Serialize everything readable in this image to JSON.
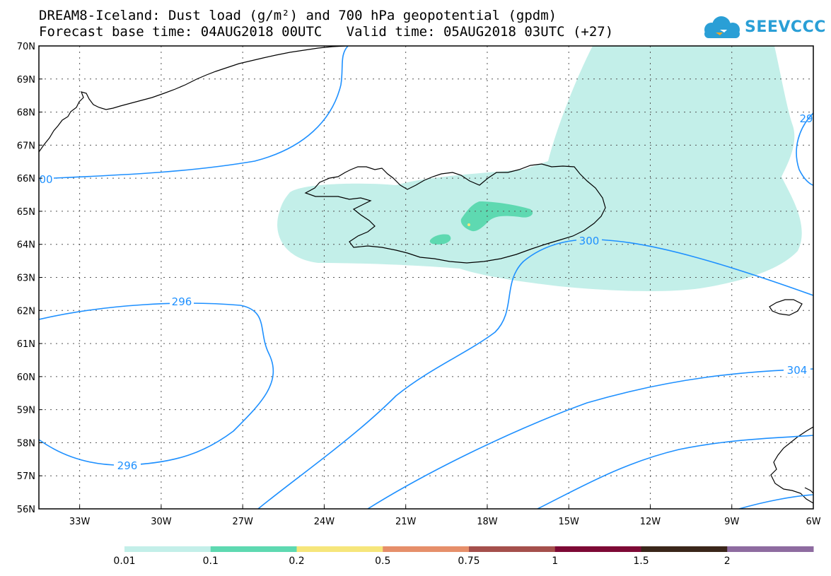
{
  "title": {
    "line1": "DREAM8-Iceland: Dust load (g/m²) and 700 hPa geopotential (gpdm)",
    "line2": "Forecast base time: 04AUG2018 00UTC   Valid time: 05AUG2018 03UTC (+27)"
  },
  "logo": {
    "text": "SEEVCCC",
    "icon": "cloud-icon",
    "color": "#2a9fd6"
  },
  "map": {
    "lat_labels": [
      "70N",
      "69N",
      "68N",
      "67N",
      "66N",
      "65N",
      "64N",
      "63N",
      "62N",
      "61N",
      "60N",
      "59N",
      "58N",
      "57N",
      "56N"
    ],
    "lon_labels": [
      "33W",
      "30W",
      "27W",
      "24W",
      "21W",
      "18W",
      "15W",
      "12W",
      "9W",
      "6W"
    ],
    "contours": [
      {
        "label": "296",
        "color": "#1e90ff"
      },
      {
        "label": "296",
        "color": "#1e90ff"
      },
      {
        "label": "300",
        "color": "#1e90ff"
      },
      {
        "label": "304",
        "color": "#1e90ff"
      },
      {
        "label": "00",
        "color": "#1e90ff"
      },
      {
        "label": "29",
        "color": "#1e90ff"
      }
    ]
  },
  "colorbar": {
    "colors": [
      "#c3efe9",
      "#5ed9b1",
      "#f6e67b",
      "#e68f6a",
      "#a5504c",
      "#7d0935",
      "#3a261a",
      "#8e6ba0"
    ],
    "labels": [
      "0.01",
      "0.1",
      "0.2",
      "0.5",
      "0.75",
      "1",
      "1.5",
      "2"
    ]
  }
}
